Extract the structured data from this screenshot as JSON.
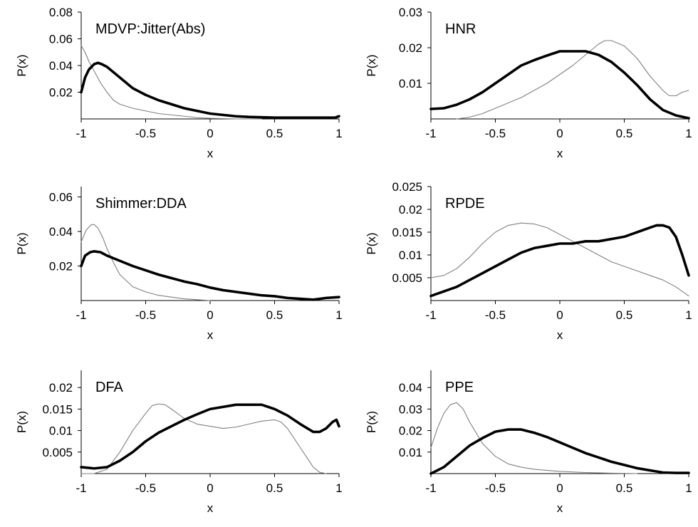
{
  "figure": {
    "colors": {
      "axis": "#000000",
      "series_thick": "#000000",
      "series_thin": "#808080"
    }
  },
  "chart_data": [
    {
      "type": "line",
      "title": "MDVP:Jitter(Abs)",
      "xlabel": "x",
      "ylabel": "P(x)",
      "xlim": [
        -1,
        1
      ],
      "ylim": [
        0,
        0.08
      ],
      "xticks": [
        -1,
        -0.5,
        0,
        0.5,
        1
      ],
      "xtick_labels": [
        "-1",
        "-0.5",
        "0",
        "0.5",
        "1"
      ],
      "yticks": [
        0.02,
        0.04,
        0.06,
        0.08
      ],
      "ytick_labels": [
        "0.02",
        "0.04",
        "0.06",
        "0.08"
      ],
      "series": [
        {
          "style": "thick",
          "x": [
            -1,
            -0.97,
            -0.94,
            -0.9,
            -0.87,
            -0.84,
            -0.8,
            -0.75,
            -0.7,
            -0.65,
            -0.6,
            -0.5,
            -0.4,
            -0.3,
            -0.2,
            -0.1,
            0,
            0.1,
            0.2,
            0.3,
            0.5,
            0.7,
            0.9,
            0.97,
            1
          ],
          "y": [
            0.02,
            0.031,
            0.037,
            0.041,
            0.042,
            0.041,
            0.039,
            0.035,
            0.031,
            0.027,
            0.023,
            0.018,
            0.014,
            0.011,
            0.008,
            0.006,
            0.004,
            0.003,
            0.002,
            0.0015,
            0.001,
            0.001,
            0.001,
            0.001,
            0.002
          ]
        },
        {
          "style": "thin",
          "x": [
            -1,
            -0.97,
            -0.94,
            -0.9,
            -0.85,
            -0.8,
            -0.75,
            -0.7,
            -0.6,
            -0.5,
            -0.4,
            -0.3,
            -0.2,
            -0.1,
            0,
            0.2,
            0.4
          ],
          "y": [
            0.055,
            0.05,
            0.043,
            0.036,
            0.027,
            0.02,
            0.014,
            0.011,
            0.008,
            0.006,
            0.004,
            0.003,
            0.002,
            0.001,
            0.0005,
            0,
            0
          ]
        }
      ]
    },
    {
      "type": "line",
      "title": "HNR",
      "xlabel": "x",
      "ylabel": "P(x)",
      "xlim": [
        -1,
        1
      ],
      "ylim": [
        0,
        0.03
      ],
      "xticks": [
        -1,
        -0.5,
        0,
        0.5,
        1
      ],
      "xtick_labels": [
        "-1",
        "-0.5",
        "0",
        "0.5",
        "1"
      ],
      "yticks": [
        0.01,
        0.02,
        0.03
      ],
      "ytick_labels": [
        "0.01",
        "0.02",
        "0.03"
      ],
      "series": [
        {
          "style": "thick",
          "x": [
            -1,
            -0.9,
            -0.8,
            -0.7,
            -0.6,
            -0.5,
            -0.4,
            -0.3,
            -0.2,
            -0.1,
            0,
            0.1,
            0.2,
            0.3,
            0.4,
            0.5,
            0.6,
            0.7,
            0.8,
            0.9,
            1
          ],
          "y": [
            0.0028,
            0.003,
            0.004,
            0.0055,
            0.0075,
            0.01,
            0.0125,
            0.015,
            0.0165,
            0.0178,
            0.019,
            0.019,
            0.019,
            0.018,
            0.016,
            0.013,
            0.0095,
            0.0055,
            0.0025,
            0.001,
            0.0002
          ]
        },
        {
          "style": "thin",
          "x": [
            -0.8,
            -0.7,
            -0.6,
            -0.5,
            -0.4,
            -0.3,
            -0.2,
            -0.1,
            0,
            0.1,
            0.2,
            0.3,
            0.35,
            0.4,
            0.5,
            0.6,
            0.7,
            0.8,
            0.85,
            0.9,
            0.95,
            1
          ],
          "y": [
            0,
            0.0005,
            0.0015,
            0.003,
            0.0045,
            0.006,
            0.008,
            0.01,
            0.0125,
            0.015,
            0.018,
            0.021,
            0.022,
            0.022,
            0.0205,
            0.017,
            0.012,
            0.008,
            0.0065,
            0.0065,
            0.0075,
            0.008
          ]
        }
      ]
    },
    {
      "type": "line",
      "title": "Shimmer:DDA",
      "xlabel": "x",
      "ylabel": "P(x)",
      "xlim": [
        -1,
        1
      ],
      "ylim": [
        0,
        0.066
      ],
      "xticks": [
        -1,
        -0.5,
        0,
        0.5,
        1
      ],
      "xtick_labels": [
        "-1",
        "-0.5",
        "0",
        "0.5",
        "1"
      ],
      "yticks": [
        0.02,
        0.04,
        0.06
      ],
      "ytick_labels": [
        "0.02",
        "0.04",
        "0.06"
      ],
      "series": [
        {
          "style": "thick",
          "x": [
            -1,
            -0.97,
            -0.93,
            -0.9,
            -0.85,
            -0.8,
            -0.7,
            -0.6,
            -0.5,
            -0.4,
            -0.3,
            -0.2,
            -0.1,
            0,
            0.1,
            0.2,
            0.3,
            0.4,
            0.5,
            0.6,
            0.7,
            0.8,
            0.9,
            1
          ],
          "y": [
            0.02,
            0.026,
            0.028,
            0.0285,
            0.028,
            0.026,
            0.023,
            0.02,
            0.0175,
            0.015,
            0.013,
            0.011,
            0.0095,
            0.0075,
            0.006,
            0.005,
            0.004,
            0.003,
            0.0025,
            0.0015,
            0.001,
            0.0005,
            0.0015,
            0.002
          ]
        },
        {
          "style": "thin",
          "x": [
            -1,
            -0.96,
            -0.92,
            -0.9,
            -0.87,
            -0.83,
            -0.8,
            -0.75,
            -0.7,
            -0.6,
            -0.5,
            -0.4,
            -0.3,
            -0.2,
            -0.1,
            0
          ],
          "y": [
            0.034,
            0.041,
            0.044,
            0.044,
            0.042,
            0.036,
            0.03,
            0.022,
            0.015,
            0.008,
            0.005,
            0.003,
            0.002,
            0.001,
            0.0005,
            0
          ]
        }
      ]
    },
    {
      "type": "line",
      "title": "RPDE",
      "xlabel": "x",
      "ylabel": "P(x)",
      "xlim": [
        -1,
        1
      ],
      "ylim": [
        0,
        0.025
      ],
      "xticks": [
        -1,
        -0.5,
        0,
        0.5,
        1
      ],
      "xtick_labels": [
        "-1",
        "-0.5",
        "0",
        "0.5",
        "1"
      ],
      "yticks": [
        0.005,
        0.01,
        0.015,
        0.02,
        0.025
      ],
      "ytick_labels": [
        "0.005",
        "0.01",
        "0.015",
        "0.02",
        "0.025"
      ],
      "series": [
        {
          "style": "thick",
          "x": [
            -1,
            -0.9,
            -0.8,
            -0.7,
            -0.6,
            -0.5,
            -0.4,
            -0.3,
            -0.2,
            -0.1,
            0,
            0.1,
            0.2,
            0.3,
            0.4,
            0.5,
            0.6,
            0.7,
            0.75,
            0.8,
            0.85,
            0.9,
            0.95,
            1
          ],
          "y": [
            0.001,
            0.002,
            0.003,
            0.0045,
            0.006,
            0.0075,
            0.009,
            0.0105,
            0.0115,
            0.012,
            0.0125,
            0.0125,
            0.013,
            0.013,
            0.0135,
            0.014,
            0.015,
            0.016,
            0.0165,
            0.0165,
            0.016,
            0.014,
            0.01,
            0.0055
          ]
        },
        {
          "style": "thin",
          "x": [
            -1,
            -0.9,
            -0.8,
            -0.7,
            -0.6,
            -0.5,
            -0.4,
            -0.3,
            -0.2,
            -0.1,
            0,
            0.1,
            0.2,
            0.3,
            0.4,
            0.5,
            0.6,
            0.7,
            0.8,
            0.9,
            1
          ],
          "y": [
            0.005,
            0.0055,
            0.007,
            0.0095,
            0.0125,
            0.015,
            0.0165,
            0.017,
            0.0168,
            0.016,
            0.0145,
            0.013,
            0.0115,
            0.01,
            0.0085,
            0.0075,
            0.0065,
            0.0055,
            0.0045,
            0.003,
            0.001
          ]
        }
      ]
    },
    {
      "type": "line",
      "title": "DFA",
      "xlabel": "x",
      "ylabel": "P(x)",
      "xlim": [
        -1,
        1
      ],
      "ylim": [
        0,
        0.024
      ],
      "xticks": [
        -1,
        -0.5,
        0,
        0.5,
        1
      ],
      "xtick_labels": [
        "-1",
        "-0.5",
        "0",
        "0.5",
        "1"
      ],
      "yticks": [
        0.005,
        0.01,
        0.015,
        0.02
      ],
      "ytick_labels": [
        "0.005",
        "0.01",
        "0.015",
        "0.02"
      ],
      "series": [
        {
          "style": "thick",
          "x": [
            -1,
            -0.9,
            -0.8,
            -0.7,
            -0.6,
            -0.5,
            -0.4,
            -0.3,
            -0.2,
            -0.1,
            0,
            0.1,
            0.2,
            0.3,
            0.4,
            0.5,
            0.6,
            0.7,
            0.8,
            0.85,
            0.9,
            0.95,
            0.98,
            1
          ],
          "y": [
            0.0015,
            0.0012,
            0.0015,
            0.003,
            0.005,
            0.0075,
            0.0095,
            0.011,
            0.0125,
            0.0138,
            0.015,
            0.0155,
            0.016,
            0.016,
            0.016,
            0.015,
            0.0135,
            0.0115,
            0.0097,
            0.0097,
            0.0105,
            0.012,
            0.0125,
            0.011
          ]
        },
        {
          "style": "thin",
          "x": [
            -1,
            -0.9,
            -0.8,
            -0.7,
            -0.6,
            -0.5,
            -0.45,
            -0.4,
            -0.35,
            -0.3,
            -0.2,
            -0.1,
            0,
            0.1,
            0.2,
            0.3,
            0.4,
            0.5,
            0.55,
            0.6,
            0.7,
            0.8,
            0.85,
            0.9
          ],
          "y": [
            0,
            0,
            0.001,
            0.005,
            0.01,
            0.014,
            0.0158,
            0.0162,
            0.016,
            0.015,
            0.0128,
            0.0115,
            0.011,
            0.0105,
            0.0108,
            0.0115,
            0.0122,
            0.0125,
            0.012,
            0.0105,
            0.006,
            0.0015,
            0.0003,
            0
          ]
        }
      ]
    },
    {
      "type": "line",
      "title": "PPE",
      "xlabel": "x",
      "ylabel": "P(x)",
      "xlim": [
        -1,
        1
      ],
      "ylim": [
        0,
        0.048
      ],
      "xticks": [
        -1,
        -0.5,
        0,
        0.5,
        1
      ],
      "xtick_labels": [
        "-1",
        "-0.5",
        "0",
        "0.5",
        "1"
      ],
      "yticks": [
        0.01,
        0.02,
        0.03,
        0.04
      ],
      "ytick_labels": [
        "0.01",
        "0.02",
        "0.03",
        "0.04"
      ],
      "series": [
        {
          "style": "thick",
          "x": [
            -1,
            -0.9,
            -0.8,
            -0.7,
            -0.6,
            -0.5,
            -0.4,
            -0.3,
            -0.2,
            -0.1,
            0,
            0.1,
            0.2,
            0.3,
            0.4,
            0.5,
            0.6,
            0.7,
            0.8,
            0.9,
            1
          ],
          "y": [
            0,
            0.003,
            0.008,
            0.013,
            0.0165,
            0.0195,
            0.0205,
            0.0205,
            0.019,
            0.017,
            0.0145,
            0.012,
            0.0095,
            0.0075,
            0.0055,
            0.004,
            0.0025,
            0.0015,
            0.0005,
            0.0003,
            0.0003
          ]
        },
        {
          "style": "thin",
          "x": [
            -1,
            -0.95,
            -0.9,
            -0.85,
            -0.8,
            -0.75,
            -0.7,
            -0.6,
            -0.5,
            -0.4,
            -0.3,
            -0.2,
            -0.1,
            0,
            0.2,
            0.4,
            0.6
          ],
          "y": [
            0.012,
            0.021,
            0.028,
            0.032,
            0.033,
            0.03,
            0.024,
            0.014,
            0.008,
            0.0045,
            0.003,
            0.002,
            0.0015,
            0.001,
            0.0005,
            0.0002,
            0
          ]
        }
      ]
    }
  ]
}
